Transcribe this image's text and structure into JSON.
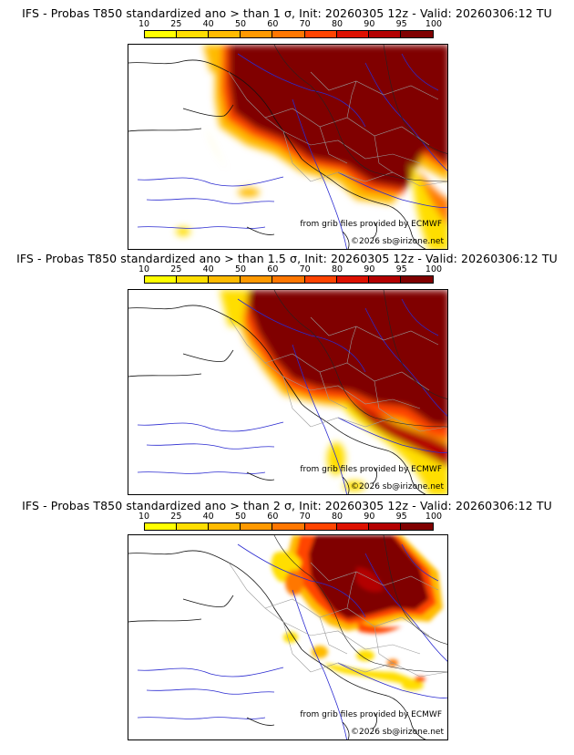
{
  "colorbar": {
    "ticks": [
      "10",
      "25",
      "40",
      "50",
      "60",
      "70",
      "80",
      "90",
      "95",
      "100"
    ],
    "colors": [
      "#ffff00",
      "#ffde00",
      "#ffbb00",
      "#ff9900",
      "#ff7700",
      "#ff4400",
      "#dd1100",
      "#b30000",
      "#800000"
    ]
  },
  "panels": [
    {
      "title": "IFS - Probas T850  standardized ano > than 1 σ, Init: 20260305 12z - Valid: 20260306:12 TU",
      "credit_source": "from grib files provided by ECMWF",
      "credit_copyright": "©2026 sb@irizone.net"
    },
    {
      "title": "IFS - Probas T850  standardized ano > than 1.5 σ, Init: 20260305 12z - Valid: 20260306:12 TU",
      "credit_source": "from grib files provided by ECMWF",
      "credit_copyright": "©2026 sb@irizone.net"
    },
    {
      "title": "IFS - Probas T850  standardized ano > than 2 σ, Init: 20260305 12z - Valid: 20260306:12 TU",
      "credit_source": "from grib files provided by ECMWF",
      "credit_copyright": "©2026 sb@irizone.net"
    }
  ]
}
